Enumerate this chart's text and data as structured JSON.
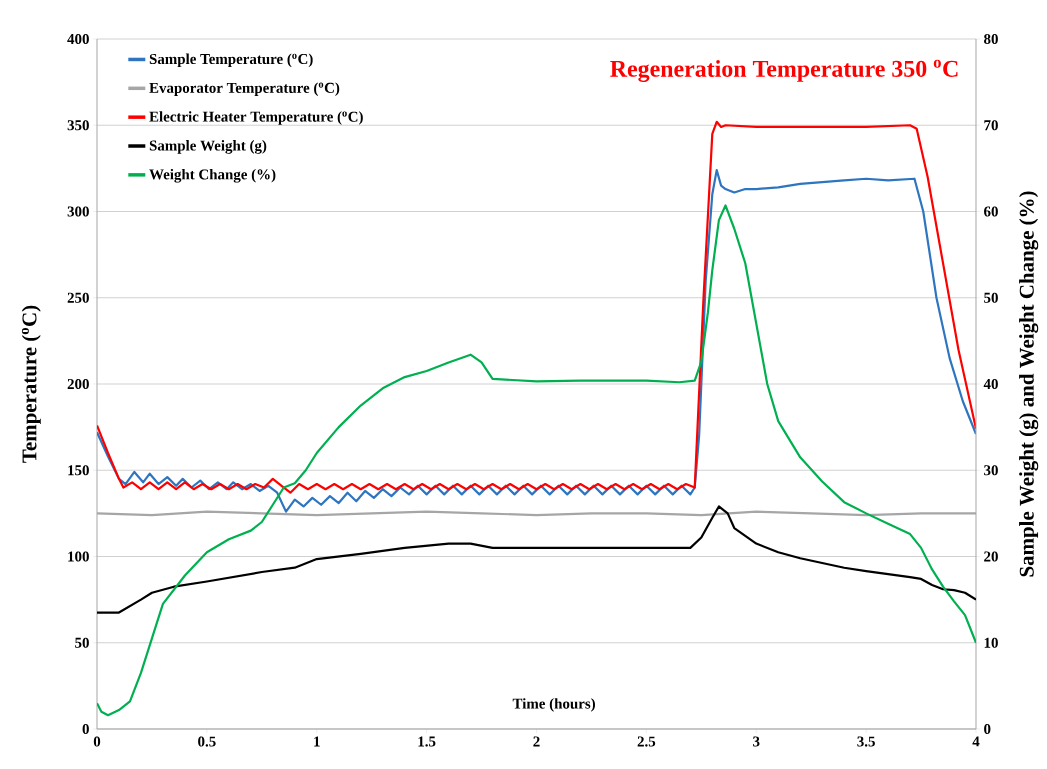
{
  "chart_data": {
    "type": "line",
    "annotations": [
      "Regeneration Temperature 350 $^{o}$C"
    ],
    "xlabel": "Time (hours)",
    "ylabel": "Temperature ($^{o}$C)",
    "y2label": "Sample Weight (g) and Weight Change (%)",
    "xlim": [
      0,
      4
    ],
    "xticks": [
      0,
      0.5,
      1,
      1.5,
      2,
      2.5,
      3,
      3.5,
      4
    ],
    "ylim": [
      0,
      400
    ],
    "yticks": [
      0,
      50,
      100,
      150,
      200,
      250,
      300,
      350,
      400
    ],
    "y2lim": [
      0,
      80
    ],
    "y2ticks": [
      0,
      10,
      20,
      30,
      40,
      50,
      60,
      70,
      80
    ],
    "grid": "y",
    "legend": "top left",
    "series": [
      {
        "name": "Sample Temperature ($^{o}$C)",
        "color": "#2e75c0",
        "x": [
          0,
          0.05,
          0.1,
          0.13,
          0.17,
          0.21,
          0.24,
          0.28,
          0.32,
          0.36,
          0.39,
          0.43,
          0.47,
          0.51,
          0.55,
          0.59,
          0.62,
          0.66,
          0.7,
          0.74,
          0.78,
          0.82,
          0.86,
          0.9,
          0.94,
          0.98,
          1.02,
          1.06,
          1.1,
          1.14,
          1.18,
          1.22,
          1.26,
          1.3,
          1.34,
          1.38,
          1.42,
          1.46,
          1.5,
          1.54,
          1.58,
          1.62,
          1.66,
          1.7,
          1.74,
          1.78,
          1.82,
          1.86,
          1.9,
          1.94,
          1.98,
          2.02,
          2.06,
          2.1,
          2.14,
          2.18,
          2.22,
          2.26,
          2.3,
          2.34,
          2.38,
          2.42,
          2.46,
          2.5,
          2.54,
          2.58,
          2.62,
          2.66,
          2.7,
          2.72,
          2.74,
          2.77,
          2.8,
          2.82,
          2.84,
          2.86,
          2.9,
          2.95,
          3,
          3.1,
          3.2,
          3.3,
          3.4,
          3.5,
          3.6,
          3.72,
          3.76,
          3.82,
          3.88,
          3.94,
          4
        ],
        "values": [
          172,
          158,
          145,
          142,
          149,
          143,
          148,
          142,
          146,
          141,
          145,
          140,
          144,
          139,
          143,
          139,
          143,
          139,
          142,
          138,
          141,
          137,
          126,
          133,
          129,
          134,
          130,
          135,
          131,
          137,
          132,
          138,
          134,
          139,
          135,
          140,
          136,
          141,
          136,
          141,
          136,
          141,
          136,
          141,
          136,
          141,
          136,
          141,
          136,
          141,
          136,
          141,
          136,
          141,
          136,
          141,
          136,
          141,
          136,
          141,
          136,
          141,
          136,
          141,
          136,
          141,
          136,
          141,
          136,
          140,
          170,
          260,
          310,
          324,
          315,
          313,
          311,
          313,
          313,
          314,
          316,
          317,
          318,
          319,
          318,
          319,
          300,
          250,
          215,
          190,
          171
        ]
      },
      {
        "name": "Evaporator Temperature ($^{o}$C)",
        "color": "#a6a6a6",
        "x": [
          0,
          0.25,
          0.5,
          0.75,
          1,
          1.25,
          1.5,
          1.75,
          2,
          2.25,
          2.5,
          2.75,
          3,
          3.25,
          3.5,
          3.75,
          4
        ],
        "values": [
          125,
          124,
          126,
          125,
          124,
          125,
          126,
          125,
          124,
          125,
          125,
          124,
          126,
          125,
          124,
          125,
          125
        ]
      },
      {
        "name": "Electric Heater Temperature ($^{o}$C)",
        "color": "#ff0000",
        "x": [
          0,
          0.05,
          0.1,
          0.12,
          0.16,
          0.2,
          0.24,
          0.28,
          0.32,
          0.36,
          0.4,
          0.44,
          0.48,
          0.52,
          0.56,
          0.6,
          0.64,
          0.68,
          0.72,
          0.76,
          0.8,
          0.84,
          0.88,
          0.92,
          0.96,
          1,
          1.04,
          1.08,
          1.12,
          1.16,
          1.2,
          1.24,
          1.28,
          1.32,
          1.36,
          1.4,
          1.44,
          1.48,
          1.52,
          1.56,
          1.6,
          1.64,
          1.68,
          1.72,
          1.76,
          1.8,
          1.84,
          1.88,
          1.92,
          1.96,
          2,
          2.04,
          2.08,
          2.12,
          2.16,
          2.2,
          2.24,
          2.28,
          2.32,
          2.36,
          2.4,
          2.44,
          2.48,
          2.52,
          2.56,
          2.6,
          2.64,
          2.68,
          2.72,
          2.76,
          2.8,
          2.82,
          2.84,
          2.86,
          3,
          3.5,
          3.7,
          3.73,
          3.78,
          3.85,
          3.92,
          4
        ],
        "values": [
          176,
          160,
          145,
          140,
          143,
          139,
          143,
          139,
          143,
          139,
          143,
          139,
          142,
          139,
          142,
          139,
          142,
          139,
          142,
          140,
          145,
          141,
          137,
          142,
          139,
          142,
          139,
          142,
          139,
          142,
          139,
          142,
          139,
          142,
          139,
          142,
          139,
          142,
          139,
          142,
          139,
          142,
          139,
          142,
          139,
          142,
          139,
          142,
          139,
          142,
          139,
          142,
          139,
          142,
          139,
          142,
          139,
          142,
          139,
          142,
          139,
          142,
          139,
          142,
          139,
          142,
          139,
          142,
          140,
          250,
          345,
          352,
          349,
          350,
          349,
          349,
          350,
          348,
          320,
          270,
          220,
          174
        ]
      },
      {
        "name": "Sample Weight (g)",
        "color": "#000000",
        "axis": "y2",
        "x": [
          0,
          0.1,
          0.2,
          0.25,
          0.35,
          0.5,
          0.75,
          0.9,
          1,
          1.2,
          1.4,
          1.6,
          1.7,
          1.8,
          2,
          2.5,
          2.7,
          2.75,
          2.8,
          2.83,
          2.87,
          2.9,
          3,
          3.1,
          3.2,
          3.4,
          3.5,
          3.7,
          3.75,
          3.8,
          3.85,
          3.9,
          3.95,
          4
        ],
        "values": [
          13.5,
          13.5,
          15,
          15.8,
          16.5,
          17.1,
          18.2,
          18.7,
          19.7,
          20.3,
          21,
          21.5,
          21.5,
          21,
          21,
          21,
          21,
          22.2,
          24.5,
          25.8,
          25,
          23.3,
          21.5,
          20.5,
          19.8,
          18.7,
          18.3,
          17.6,
          17.4,
          16.7,
          16.2,
          16.1,
          15.8,
          15
        ]
      },
      {
        "name": "Weight Change (%)",
        "color": "#00b050",
        "axis": "y2",
        "x": [
          0,
          0.02,
          0.05,
          0.1,
          0.15,
          0.2,
          0.25,
          0.3,
          0.4,
          0.5,
          0.6,
          0.7,
          0.75,
          0.8,
          0.85,
          0.9,
          0.95,
          1,
          1.1,
          1.2,
          1.3,
          1.4,
          1.5,
          1.6,
          1.7,
          1.75,
          1.8,
          2,
          2.2,
          2.5,
          2.65,
          2.72,
          2.75,
          2.78,
          2.8,
          2.83,
          2.86,
          2.9,
          2.95,
          3,
          3.05,
          3.1,
          3.2,
          3.3,
          3.4,
          3.5,
          3.6,
          3.7,
          3.75,
          3.8,
          3.85,
          3.9,
          3.95,
          4
        ],
        "values": [
          3,
          2,
          1.6,
          2.2,
          3.2,
          6.5,
          10.5,
          14.5,
          17.8,
          20.5,
          22,
          23,
          24,
          26,
          28,
          28.5,
          30,
          32,
          35,
          37.5,
          39.5,
          40.8,
          41.5,
          42.5,
          43.4,
          42.5,
          40.6,
          40.3,
          40.4,
          40.4,
          40.2,
          40.4,
          42.6,
          48.3,
          53.2,
          59,
          60.7,
          58,
          54,
          47,
          40,
          35.7,
          31.5,
          28.7,
          26.3,
          25,
          23.8,
          22.6,
          21,
          18.5,
          16.5,
          14.8,
          13.2,
          10
        ]
      }
    ]
  }
}
